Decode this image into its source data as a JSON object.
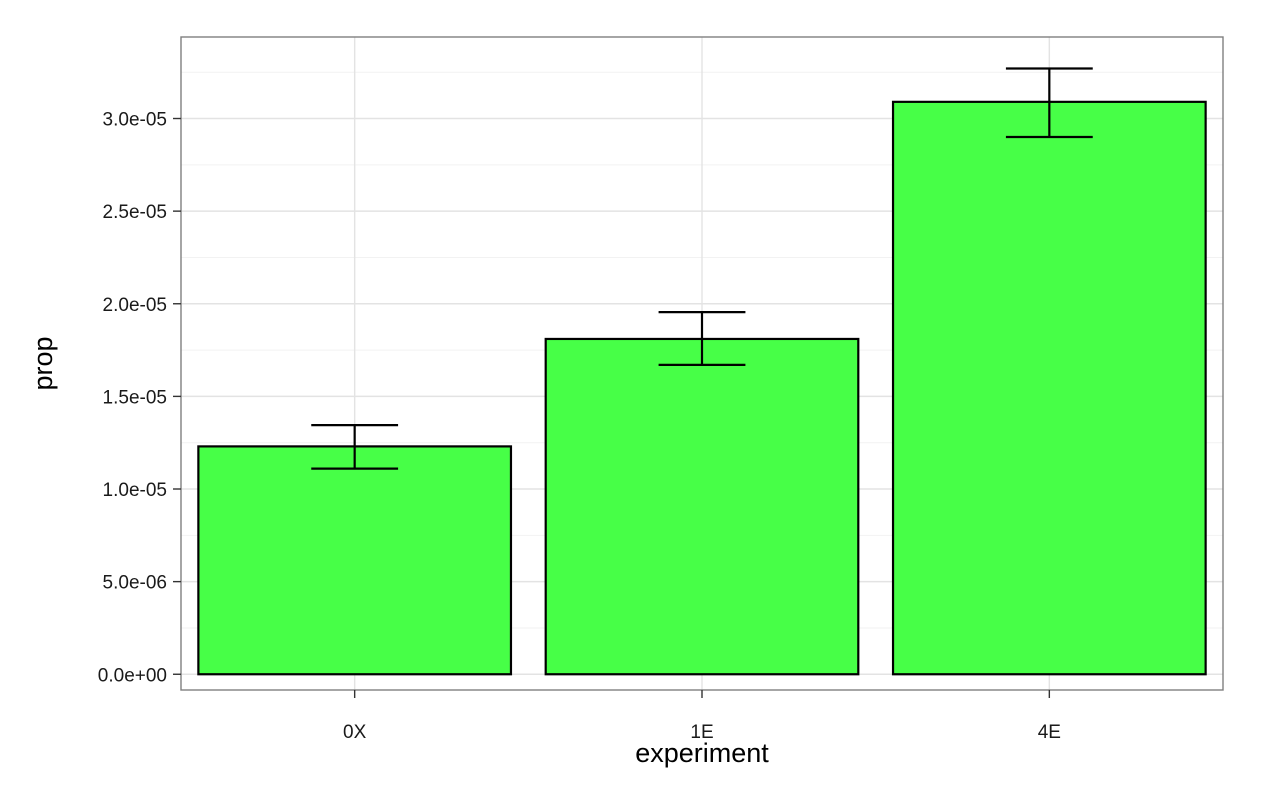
{
  "chart_data": {
    "type": "bar",
    "title": "",
    "xlabel": "experiment",
    "ylabel": "prop",
    "categories": [
      "0X",
      "1E",
      "4E"
    ],
    "values": [
      1.23e-05,
      1.81e-05,
      3.09e-05
    ],
    "error_bars": {
      "lower": [
        1.11e-05,
        1.67e-05,
        2.9e-05
      ],
      "upper": [
        1.345e-05,
        1.955e-05,
        3.27e-05
      ]
    },
    "ylim": [
      -8.5e-07,
      3.44e-05
    ],
    "y_ticks": [
      0,
      5e-06,
      1e-05,
      1.5e-05,
      2e-05,
      2.5e-05,
      3e-05
    ],
    "y_tick_labels": [
      "0.0e+00",
      "5.0e-06",
      "1.0e-05",
      "1.5e-05",
      "2.0e-05",
      "2.5e-05",
      "3.0e-05"
    ],
    "grid": true,
    "legend": "none",
    "colors": {
      "bar_fill": "#47ff47",
      "bar_stroke": "#000000",
      "grid_major": "#e3e3e3",
      "grid_minor": "#f2f2f2",
      "panel_border": "#7f7f7f"
    }
  }
}
